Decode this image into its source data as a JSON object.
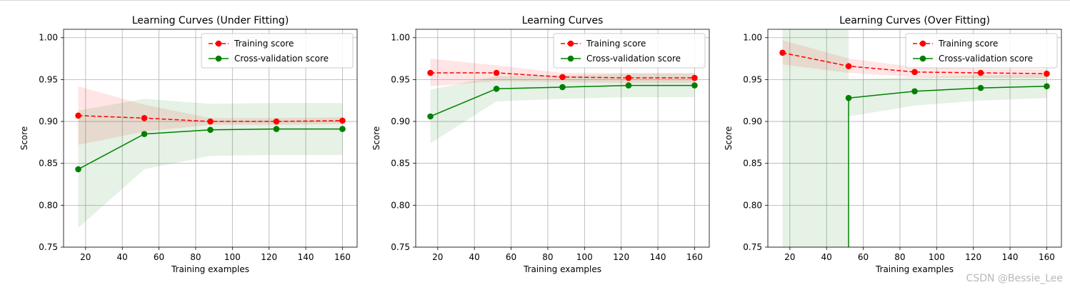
{
  "watermark": "CSDN @Bessie_Lee",
  "colors": {
    "train": "#ff0000",
    "cv": "#008000",
    "grid": "#b0b0b0"
  },
  "chart_data": [
    {
      "type": "line",
      "title": "Learning Curves (Under Fitting)",
      "xlabel": "Training examples",
      "ylabel": "Score",
      "xlim": [
        8,
        168
      ],
      "ylim": [
        0.75,
        1.01
      ],
      "xticks": [
        20,
        40,
        60,
        80,
        100,
        120,
        140,
        160
      ],
      "yticks": [
        0.75,
        0.8,
        0.85,
        0.9,
        0.95,
        1.0
      ],
      "grid": true,
      "legend_position": "top-right",
      "x": [
        16,
        52,
        88,
        124,
        160
      ],
      "series": [
        {
          "name": "Training score",
          "values": [
            0.907,
            0.904,
            0.9,
            0.9,
            0.901
          ],
          "band_lower": [
            0.872,
            0.888,
            0.896,
            0.896,
            0.897
          ],
          "band_upper": [
            0.942,
            0.92,
            0.904,
            0.904,
            0.905
          ]
        },
        {
          "name": "Cross-validation score",
          "values": [
            0.843,
            0.885,
            0.89,
            0.891,
            0.891
          ],
          "band_lower": [
            0.773,
            0.843,
            0.859,
            0.86,
            0.86
          ],
          "band_upper": [
            0.913,
            0.927,
            0.921,
            0.922,
            0.922
          ]
        }
      ]
    },
    {
      "type": "line",
      "title": "Learning Curves",
      "xlabel": "Training examples",
      "ylabel": "Score",
      "xlim": [
        8,
        168
      ],
      "ylim": [
        0.75,
        1.01
      ],
      "xticks": [
        20,
        40,
        60,
        80,
        100,
        120,
        140,
        160
      ],
      "yticks": [
        0.75,
        0.8,
        0.85,
        0.9,
        0.95,
        1.0
      ],
      "grid": true,
      "legend_position": "top-right",
      "x": [
        16,
        52,
        88,
        124,
        160
      ],
      "series": [
        {
          "name": "Training score",
          "values": [
            0.958,
            0.958,
            0.953,
            0.952,
            0.952
          ],
          "band_lower": [
            0.942,
            0.948,
            0.947,
            0.946,
            0.946
          ],
          "band_upper": [
            0.975,
            0.967,
            0.958,
            0.958,
            0.958
          ]
        },
        {
          "name": "Cross-validation score",
          "values": [
            0.906,
            0.939,
            0.941,
            0.943,
            0.943
          ],
          "band_lower": [
            0.874,
            0.924,
            0.927,
            0.929,
            0.929
          ],
          "band_upper": [
            0.938,
            0.954,
            0.955,
            0.957,
            0.957
          ]
        }
      ]
    },
    {
      "type": "line",
      "title": "Learning Curves (Over Fitting)",
      "xlabel": "Training examples",
      "ylabel": "Score",
      "xlim": [
        8,
        168
      ],
      "ylim": [
        0.75,
        1.01
      ],
      "xticks": [
        20,
        40,
        60,
        80,
        100,
        120,
        140,
        160
      ],
      "yticks": [
        0.75,
        0.8,
        0.85,
        0.9,
        0.95,
        1.0
      ],
      "grid": true,
      "legend_position": "top-right",
      "x": [
        16,
        52,
        88,
        124,
        160
      ],
      "series": [
        {
          "name": "Training score",
          "values": [
            0.982,
            0.966,
            0.959,
            0.958,
            0.957
          ],
          "band_lower": [
            0.968,
            0.958,
            0.953,
            0.952,
            0.952
          ],
          "band_upper": [
            0.997,
            0.975,
            0.965,
            0.963,
            0.962
          ]
        },
        {
          "name": "Cross-validation score",
          "values": [
            null,
            0.928,
            0.936,
            0.94,
            0.942
          ],
          "band_lower": [
            null,
            0.906,
            0.919,
            0.925,
            0.928
          ],
          "band_upper": [
            null,
            0.95,
            0.953,
            0.955,
            0.956
          ]
        }
      ],
      "annotations": [
        {
          "note": "Cross-validation score drops far below the axis at the second point (vertical line)",
          "x": 52
        },
        {
          "note": "Cross-validation band spans the full height between x≈16 and x≈52",
          "x_start": 16,
          "x_end": 52
        }
      ]
    }
  ]
}
